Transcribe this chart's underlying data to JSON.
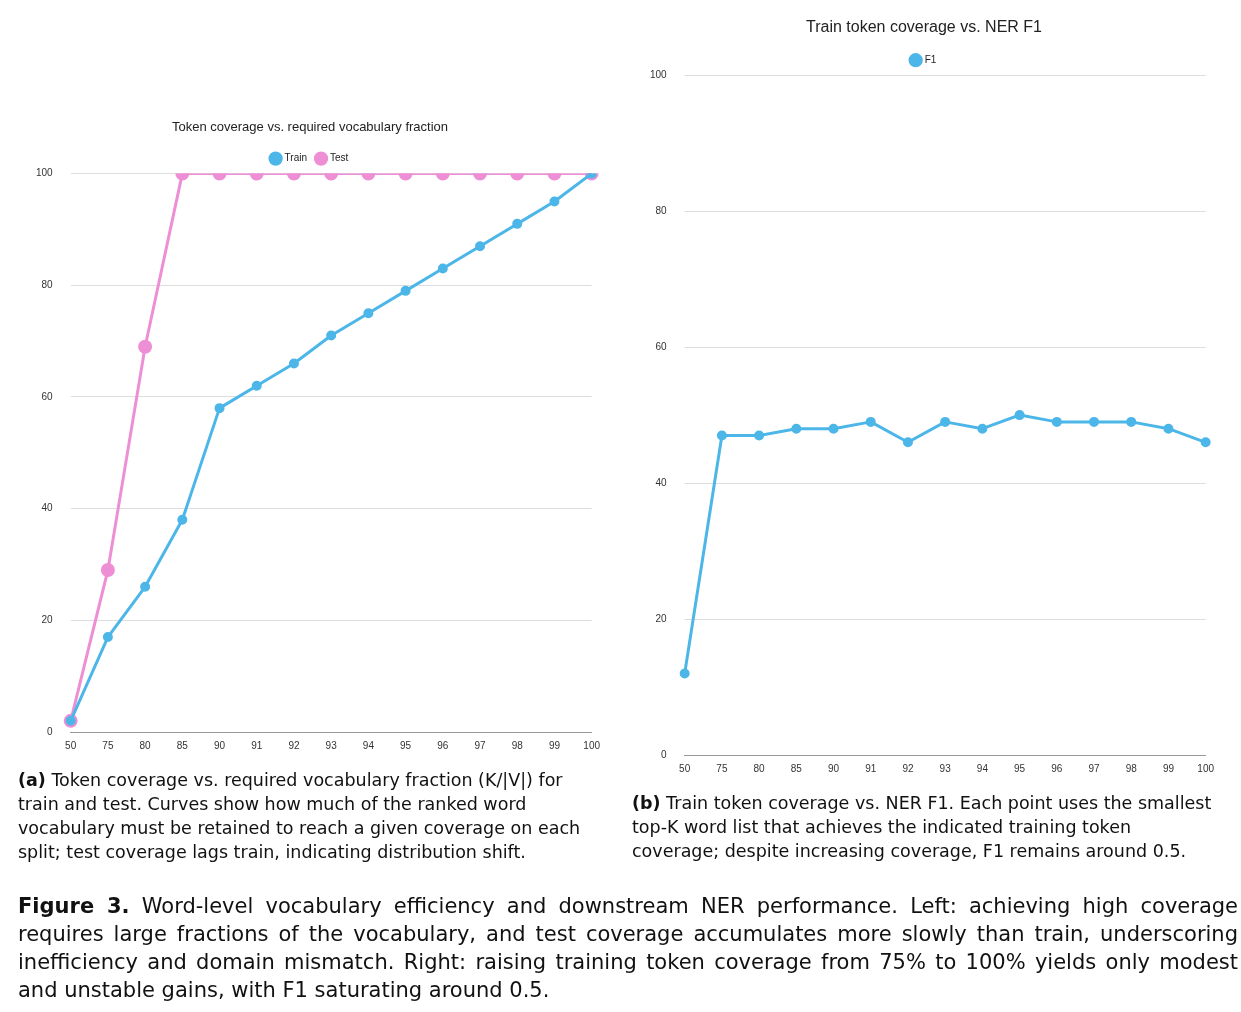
{
  "chart_data": [
    {
      "type": "line",
      "title": "Token coverage vs. required vocabulary fraction",
      "categories": [
        "50",
        "75",
        "80",
        "85",
        "90",
        "91",
        "92",
        "93",
        "94",
        "95",
        "96",
        "97",
        "98",
        "99",
        "100"
      ],
      "series": [
        {
          "name": "Train",
          "color": "#4db6e8",
          "values": [
            2,
            17,
            26,
            38,
            58,
            62,
            66,
            71,
            75,
            79,
            83,
            87,
            91,
            95,
            100
          ]
        },
        {
          "name": "Test",
          "color": "#ee8fd6",
          "values": [
            2,
            29,
            69,
            100,
            100,
            100,
            100,
            100,
            100,
            100,
            100,
            100,
            100,
            100,
            100
          ]
        }
      ],
      "ylim": [
        0,
        100
      ],
      "yticks": [
        0,
        20,
        40,
        60,
        80,
        100
      ],
      "grid": "y",
      "legend": "top",
      "marker": "circle",
      "annotations": [
        "(a) Token coverage vs. required vocabulary fraction (K/|V|) for train and test. Curves show how much of the ranked word vocabulary must be retained to reach a given coverage on each split; test coverage lags train, indicating distribution shift."
      ]
    },
    {
      "type": "line",
      "title": "Train token coverage vs. NER F1",
      "categories": [
        "50",
        "75",
        "80",
        "85",
        "90",
        "91",
        "92",
        "93",
        "94",
        "95",
        "96",
        "97",
        "98",
        "99",
        "100"
      ],
      "series": [
        {
          "name": "F1",
          "color": "#4db6e8",
          "values": [
            12,
            47,
            47,
            48,
            48,
            49,
            46,
            49,
            48,
            50,
            49,
            49,
            49,
            48,
            46
          ]
        }
      ],
      "ylim": [
        0,
        100
      ],
      "yticks": [
        0,
        20,
        40,
        60,
        80,
        100
      ],
      "grid": "y",
      "legend": "top",
      "marker": "circle",
      "annotations": [
        "(b) Train token coverage vs. NER F1. Each point uses the smallest top-K word list that achieves the indicated training token coverage; despite increasing coverage, F1 remains around 0.5.",
        "Figure 3. Word-level vocabulary efficiency and downstream NER performance. Left: achieving high coverage requires large fractions of the vocabulary, and test coverage accumulates more slowly than train, underscoring inefficiency and domain mismatch. Right: raising training token coverage from 75% to 100% yields only modest and unstable gains, with F1 saturating around 0.5."
      ]
    }
  ]
}
